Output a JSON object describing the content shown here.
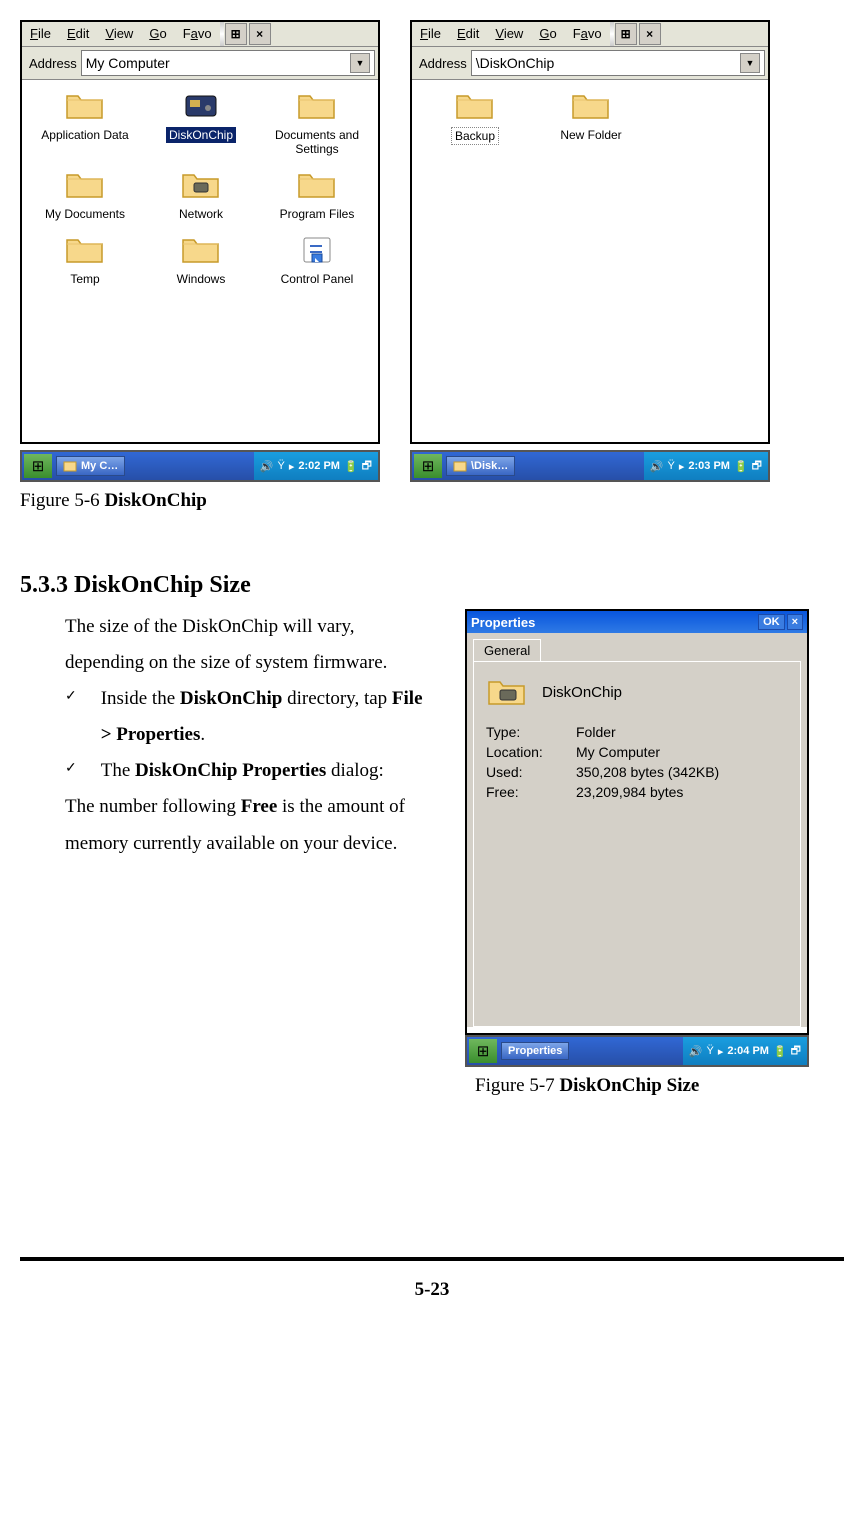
{
  "window1": {
    "menu": [
      "File",
      "Edit",
      "View",
      "Go",
      "Favo"
    ],
    "address_label": "Address",
    "address_value": "My Computer",
    "items": [
      {
        "label": "Application Data",
        "type": "folder"
      },
      {
        "label": "DiskOnChip",
        "type": "chip",
        "selected": true
      },
      {
        "label": "Documents and Settings",
        "type": "folder"
      },
      {
        "label": "My Documents",
        "type": "folder"
      },
      {
        "label": "Network",
        "type": "network"
      },
      {
        "label": "Program Files",
        "type": "folder"
      },
      {
        "label": "Temp",
        "type": "folder"
      },
      {
        "label": "Windows",
        "type": "folder"
      },
      {
        "label": "Control Panel",
        "type": "cpanel"
      }
    ],
    "task_label": "My C…",
    "time": "2:02 PM"
  },
  "window2": {
    "menu": [
      "File",
      "Edit",
      "View",
      "Go",
      "Favo"
    ],
    "address_label": "Address",
    "address_value": "\\DiskOnChip",
    "items": [
      {
        "label": "Backup",
        "type": "folder",
        "boxed": true
      },
      {
        "label": "New Folder",
        "type": "folder"
      }
    ],
    "task_label": "\\Disk…",
    "time": "2:03 PM"
  },
  "caption1_a": "Figure 5-6 ",
  "caption1_b": "DiskOnChip",
  "section_heading": "5.3.3 DiskOnChip Size",
  "para1": "The size of the DiskOnChip will vary, depending on the size of system firmware.",
  "bullet1_a": "Inside the ",
  "bullet1_b": "DiskOnChip",
  "bullet1_c": " directory, tap ",
  "bullet1_d": "File > Properties",
  "bullet1_e": ".",
  "bullet2_a": "The ",
  "bullet2_b": "DiskOnChip Properties",
  "bullet2_c": " dialog:",
  "para2_a": "The number following ",
  "para2_b": "Free",
  "para2_c": " is the amount of memory currently available on your device.",
  "props": {
    "title": "Properties",
    "ok": "OK",
    "tab": "General",
    "name": "DiskOnChip",
    "type_k": "Type:",
    "type_v": "Folder",
    "loc_k": "Location:",
    "loc_v": "My Computer",
    "used_k": "Used:",
    "used_v": "350,208 bytes (342KB)",
    "free_k": "Free:",
    "free_v": "23,209,984 bytes",
    "task_label": "Properties",
    "time": "2:04 PM"
  },
  "caption2_a": "Figure 5-7 ",
  "caption2_b": "DiskOnChip Size",
  "pagenum": "5-23",
  "colors": {
    "menubar": "#e4e4d8",
    "sel_bg": "#0a246a",
    "folder_fill": "#f7d88b",
    "folder_stroke": "#c79a2a",
    "taskbar_a": "#3168d5",
    "taskbar_b": "#274fa8"
  }
}
